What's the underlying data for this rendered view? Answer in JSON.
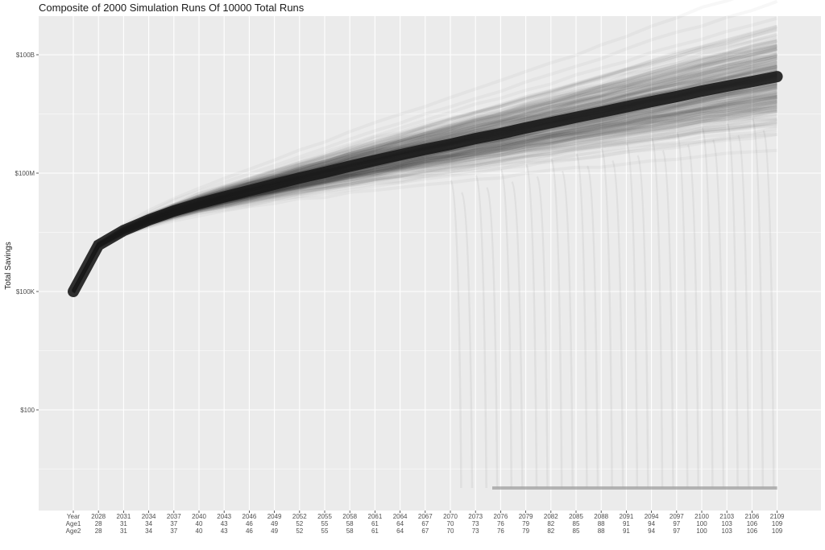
{
  "chart_data": {
    "type": "line",
    "title": "Composite of 2000 Simulation Runs Of 10000 Total Runs",
    "xlabel": "",
    "ylabel": "Total Savings",
    "y_scale": "log10",
    "y_ticks": [
      {
        "value": 100,
        "label": "$100"
      },
      {
        "value": 100000,
        "label": "$100K"
      },
      {
        "value": 100000000,
        "label": "$100M"
      },
      {
        "value": 100000000000,
        "label": "$100B"
      }
    ],
    "x_row_labels": [
      "Year",
      "Age1",
      "Age2"
    ],
    "x_ticks": [
      {
        "year": 2028,
        "age1": 28,
        "age2": 28
      },
      {
        "year": 2031,
        "age1": 31,
        "age2": 31
      },
      {
        "year": 2034,
        "age1": 34,
        "age2": 34
      },
      {
        "year": 2037,
        "age1": 37,
        "age2": 37
      },
      {
        "year": 2040,
        "age1": 40,
        "age2": 40
      },
      {
        "year": 2043,
        "age1": 43,
        "age2": 43
      },
      {
        "year": 2046,
        "age1": 46,
        "age2": 46
      },
      {
        "year": 2049,
        "age1": 49,
        "age2": 49
      },
      {
        "year": 2052,
        "age1": 52,
        "age2": 52
      },
      {
        "year": 2055,
        "age1": 55,
        "age2": 55
      },
      {
        "year": 2058,
        "age1": 58,
        "age2": 58
      },
      {
        "year": 2061,
        "age1": 61,
        "age2": 61
      },
      {
        "year": 2064,
        "age1": 64,
        "age2": 64
      },
      {
        "year": 2067,
        "age1": 67,
        "age2": 67
      },
      {
        "year": 2070,
        "age1": 70,
        "age2": 70
      },
      {
        "year": 2073,
        "age1": 73,
        "age2": 73
      },
      {
        "year": 2076,
        "age1": 76,
        "age2": 76
      },
      {
        "year": 2079,
        "age1": 79,
        "age2": 79
      },
      {
        "year": 2082,
        "age1": 82,
        "age2": 82
      },
      {
        "year": 2085,
        "age1": 85,
        "age2": 85
      },
      {
        "year": 2088,
        "age1": 88,
        "age2": 88
      },
      {
        "year": 2091,
        "age1": 91,
        "age2": 91
      },
      {
        "year": 2094,
        "age1": 94,
        "age2": 94
      },
      {
        "year": 2097,
        "age1": 97,
        "age2": 97
      },
      {
        "year": 2100,
        "age1": 100,
        "age2": 100
      },
      {
        "year": 2103,
        "age1": 103,
        "age2": 103
      },
      {
        "year": 2106,
        "age1": 106,
        "age2": 106
      },
      {
        "year": 2109,
        "age1": 109,
        "age2": 109
      }
    ],
    "series": [
      {
        "values_by_year": {
          "2025": 100000,
          "2028": 1500000,
          "2031": 3500000,
          "2034": 6500000,
          "2037": 11000000,
          "2040": 17000000,
          "2043": 25000000,
          "2046": 36000000,
          "2049": 52000000,
          "2052": 75000000,
          "2055": 105000000,
          "2058": 150000000,
          "2061": 210000000,
          "2064": 290000000,
          "2067": 400000000,
          "2070": 540000000,
          "2073": 750000000,
          "2076": 1000000000,
          "2079": 1400000000,
          "2082": 1900000000,
          "2085": 2600000000,
          "2088": 3500000000,
          "2091": 4800000000,
          "2094": 6500000000,
          "2097": 8700000000,
          "2100": 12000000000,
          "2103": 16000000000,
          "2106": 21000000000,
          "2109": 28000000000
        }
      }
    ],
    "grid": true,
    "legend": "none",
    "colors": {
      "panel": "#ebebeb",
      "grid": "#ffffff",
      "lines": "#1a1a1a",
      "depleted": "#9a9a9a"
    }
  }
}
